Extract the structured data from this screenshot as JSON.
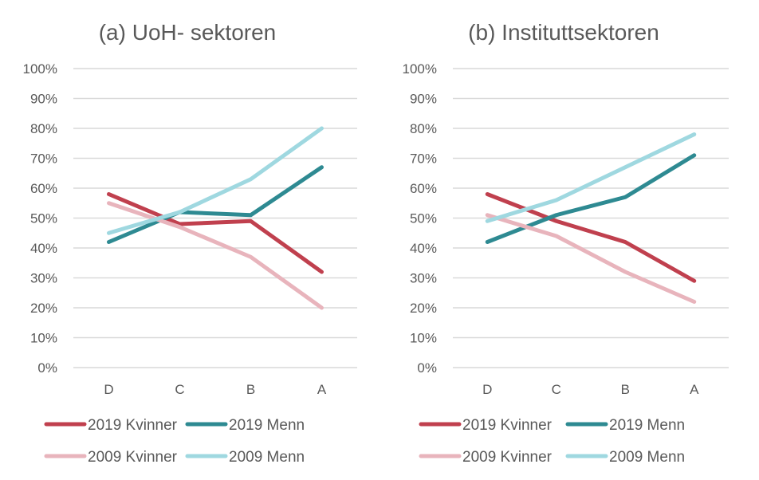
{
  "chart_data": [
    {
      "type": "line",
      "title": "(a) UoH- sektoren",
      "categories": [
        "D",
        "C",
        "B",
        "A"
      ],
      "yticks": [
        "0%",
        "10%",
        "20%",
        "30%",
        "40%",
        "50%",
        "60%",
        "70%",
        "80%",
        "90%",
        "100%"
      ],
      "ylim": [
        0,
        100
      ],
      "grid": true,
      "legend_position": "bottom",
      "series": [
        {
          "name": "2019 Kvinner",
          "color": "#c0404e",
          "values": [
            58,
            48,
            49,
            32
          ]
        },
        {
          "name": "2019 Menn",
          "color": "#2e8a92",
          "values": [
            42,
            52,
            51,
            67
          ]
        },
        {
          "name": "2009 Kvinner",
          "color": "#e8b4bc",
          "values": [
            55,
            47,
            37,
            20
          ]
        },
        {
          "name": "2009 Menn",
          "color": "#9fd8e0",
          "values": [
            45,
            52,
            63,
            80
          ]
        }
      ]
    },
    {
      "type": "line",
      "title": "(b) Instituttsektoren",
      "categories": [
        "D",
        "C",
        "B",
        "A"
      ],
      "yticks": [
        "0%",
        "10%",
        "20%",
        "30%",
        "40%",
        "50%",
        "60%",
        "70%",
        "80%",
        "90%",
        "100%"
      ],
      "ylim": [
        0,
        100
      ],
      "grid": true,
      "legend_position": "bottom",
      "series": [
        {
          "name": "2019 Kvinner",
          "color": "#c0404e",
          "values": [
            58,
            49,
            42,
            29
          ]
        },
        {
          "name": "2019 Menn",
          "color": "#2e8a92",
          "values": [
            42,
            51,
            57,
            71
          ]
        },
        {
          "name": "2009 Kvinner",
          "color": "#e8b4bc",
          "values": [
            51,
            44,
            32,
            22
          ]
        },
        {
          "name": "2009 Menn",
          "color": "#9fd8e0",
          "values": [
            49,
            56,
            67,
            78
          ]
        }
      ]
    }
  ]
}
